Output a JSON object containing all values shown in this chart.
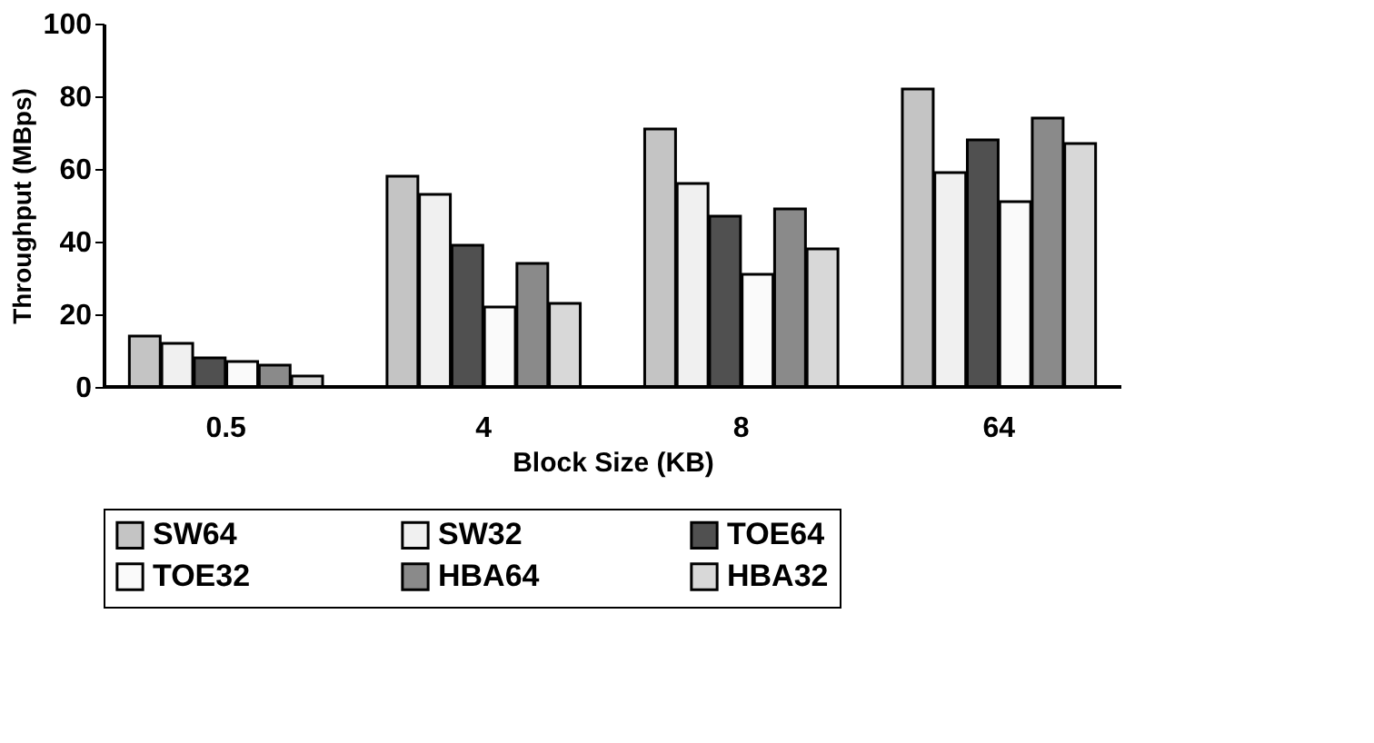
{
  "chart_data": {
    "type": "bar",
    "xlabel": "Block Size (KB)",
    "ylabel": "Throughput (MBps)",
    "categories": [
      "0.5",
      "4",
      "8",
      "64"
    ],
    "series": [
      {
        "name": "SW64",
        "color": "#c4c4c4",
        "values": [
          14,
          58,
          71,
          82
        ]
      },
      {
        "name": "SW32",
        "color": "#f0f0f0",
        "values": [
          12,
          53,
          56,
          59
        ]
      },
      {
        "name": "TOE64",
        "color": "#505050",
        "values": [
          8,
          39,
          47,
          68
        ]
      },
      {
        "name": "TOE32",
        "color": "#fafafa",
        "values": [
          7,
          22,
          31,
          51
        ]
      },
      {
        "name": "HBA64",
        "color": "#8a8a8a",
        "values": [
          6,
          34,
          49,
          74
        ]
      },
      {
        "name": "HBA32",
        "color": "#d8d8d8",
        "values": [
          3,
          23,
          38,
          67
        ]
      }
    ],
    "ylim": [
      0,
      100
    ],
    "yticks": [
      0,
      20,
      40,
      60,
      80,
      100
    ],
    "grid": false,
    "legend": "bottom"
  }
}
